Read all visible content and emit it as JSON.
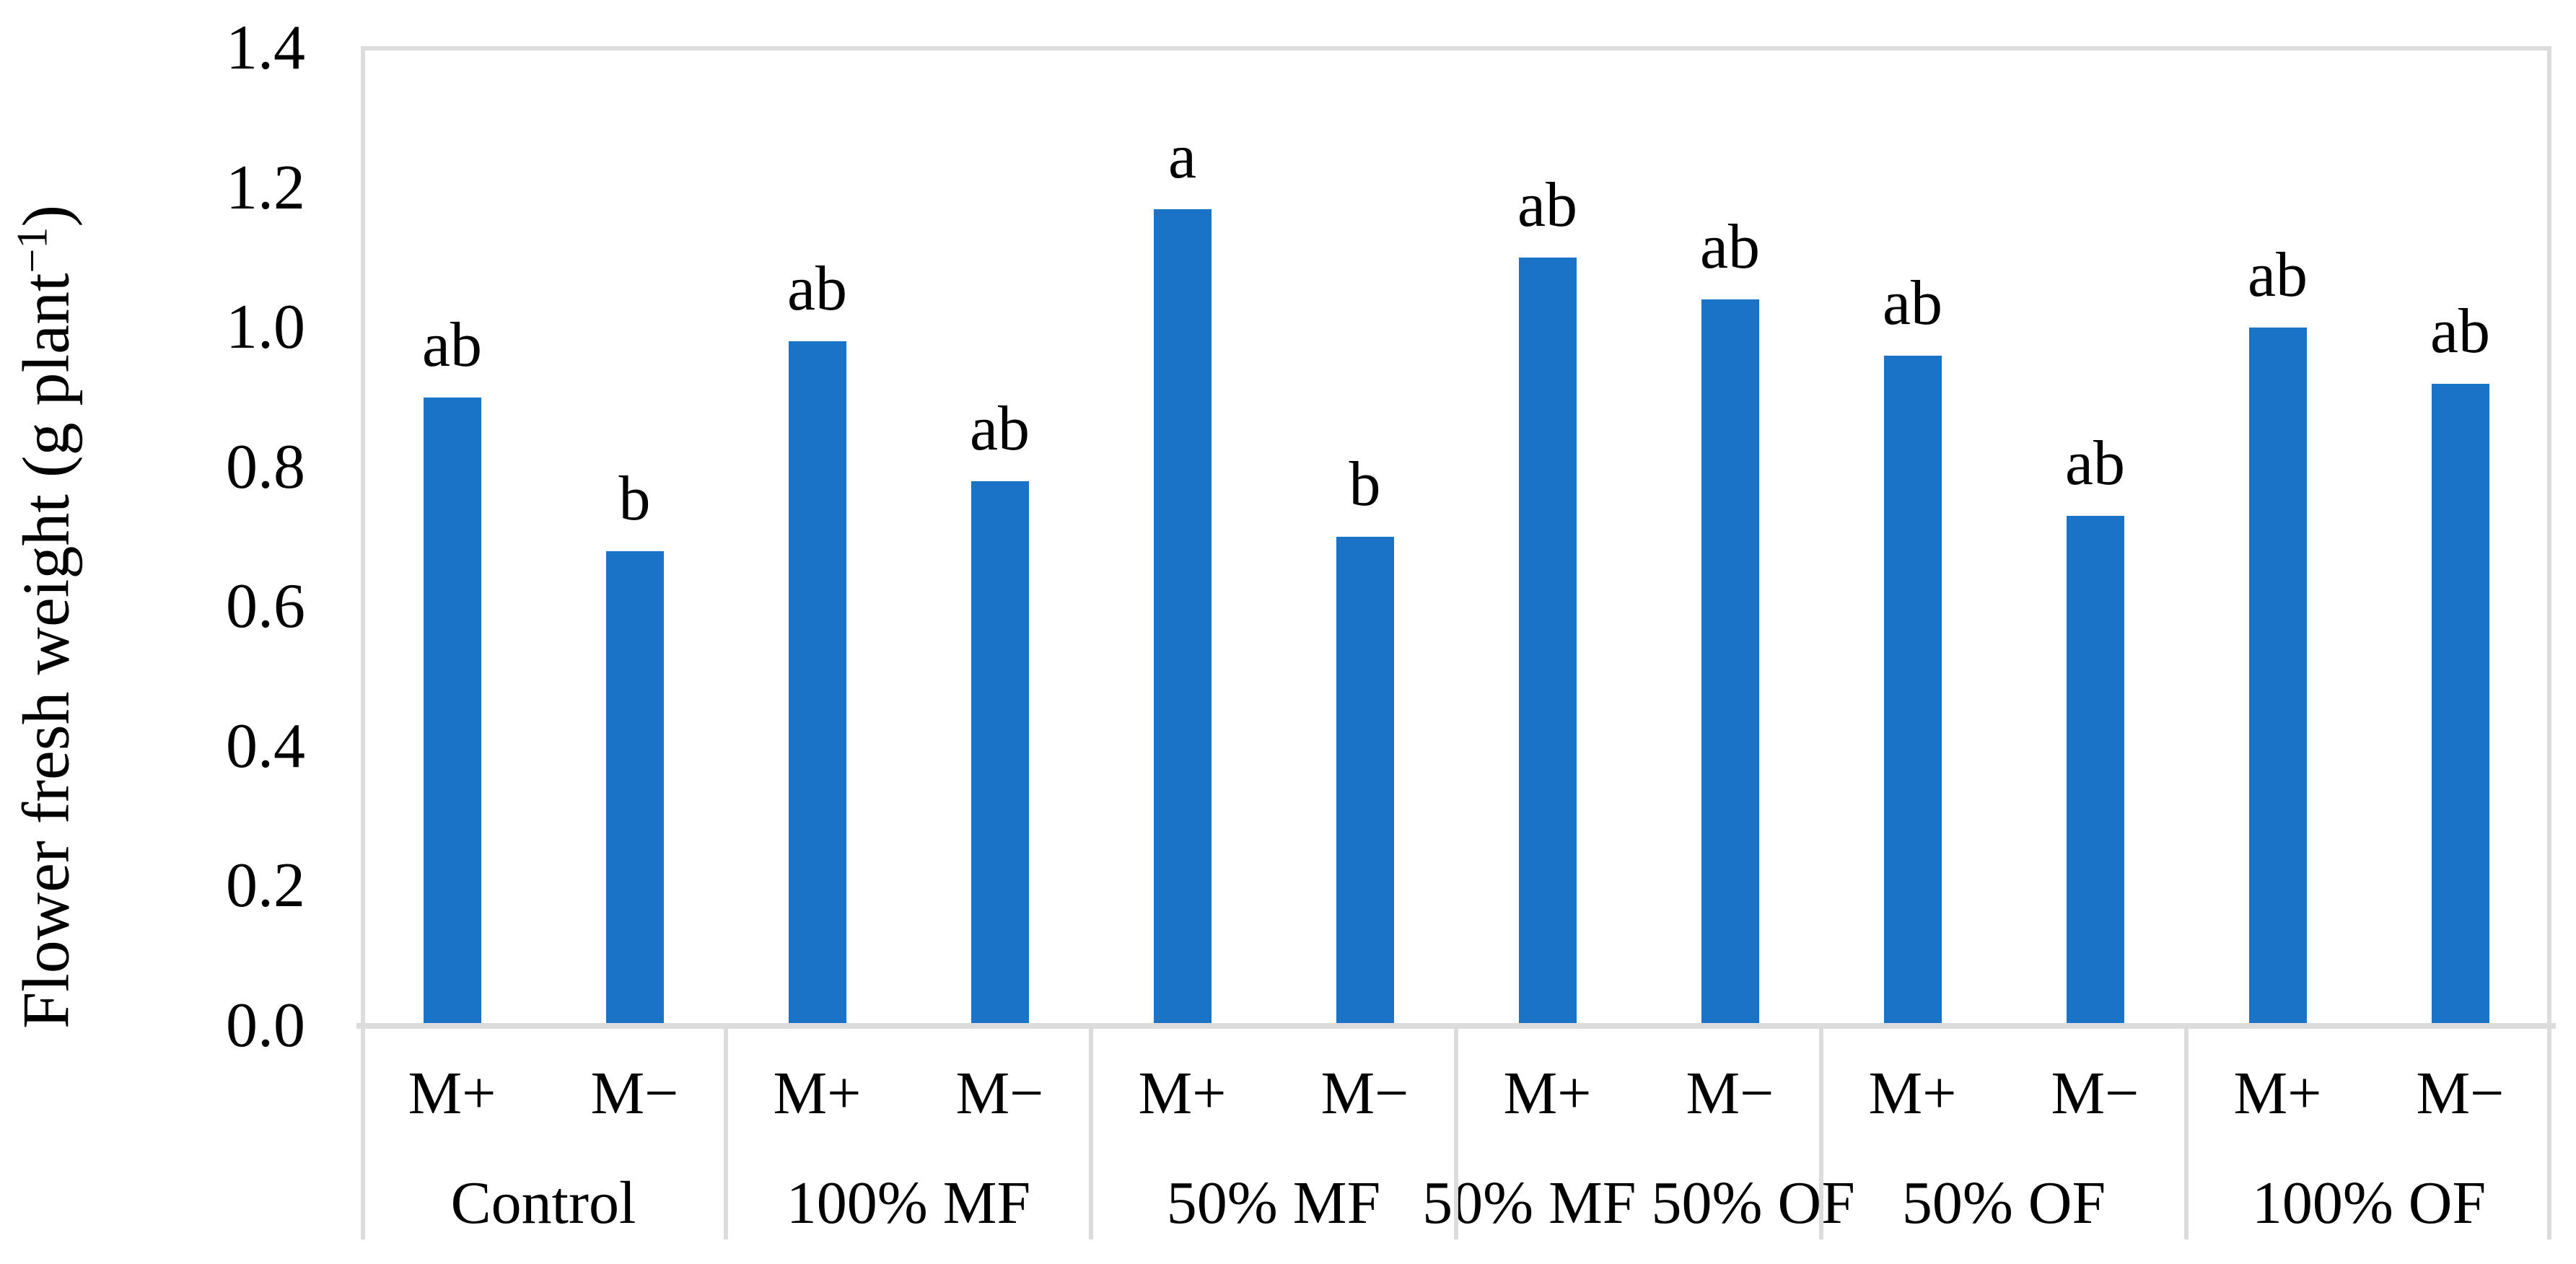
{
  "figure": {
    "y_axis": {
      "label_prefix": "Flower fresh weight (g plant",
      "label_sup": "−1",
      "label_suffix": ")",
      "ticks": [
        "0.0",
        "0.2",
        "0.4",
        "0.6",
        "0.8",
        "1.0",
        "1.2",
        "1.4"
      ]
    }
  },
  "chart_data": {
    "type": "bar",
    "title": "",
    "xlabel": "",
    "ylabel": "Flower fresh weight (g plant−1)",
    "ylim": [
      0,
      1.4
    ],
    "ytick_step": 0.2,
    "grid": false,
    "legend_position": "none",
    "bar_color": "#1B73C8",
    "axis_line_color": "#DCDCDC",
    "text_color": "#000000",
    "groups": [
      {
        "label": "Control",
        "bars": [
          {
            "category": "M+",
            "value": 0.9,
            "letter": "ab"
          },
          {
            "category": "M−",
            "value": 0.68,
            "letter": "b"
          }
        ]
      },
      {
        "label": "100% MF",
        "bars": [
          {
            "category": "M+",
            "value": 0.98,
            "letter": "ab"
          },
          {
            "category": "M−",
            "value": 0.78,
            "letter": "ab"
          }
        ]
      },
      {
        "label": "50% MF",
        "bars": [
          {
            "category": "M+",
            "value": 1.17,
            "letter": "a"
          },
          {
            "category": "M−",
            "value": 0.7,
            "letter": "b"
          }
        ]
      },
      {
        "label": "50% MF 50% OF",
        "bars": [
          {
            "category": "M+",
            "value": 1.1,
            "letter": "ab"
          },
          {
            "category": "M−",
            "value": 1.04,
            "letter": "ab"
          }
        ]
      },
      {
        "label": "50% OF",
        "bars": [
          {
            "category": "M+",
            "value": 0.96,
            "letter": "ab"
          },
          {
            "category": "M−",
            "value": 0.73,
            "letter": "ab"
          }
        ]
      },
      {
        "label": "100% OF",
        "bars": [
          {
            "category": "M+",
            "value": 1.0,
            "letter": "ab"
          },
          {
            "category": "M−",
            "value": 0.92,
            "letter": "ab"
          }
        ]
      }
    ]
  }
}
